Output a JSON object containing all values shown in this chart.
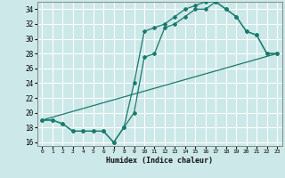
{
  "xlabel": "Humidex (Indice chaleur)",
  "bg_color": "#cce8e8",
  "grid_color": "#ffffff",
  "line_color": "#1a7a6e",
  "xlim": [
    -0.5,
    23.5
  ],
  "ylim": [
    15.5,
    35.0
  ],
  "xticks": [
    0,
    1,
    2,
    3,
    4,
    5,
    6,
    7,
    8,
    9,
    10,
    11,
    12,
    13,
    14,
    15,
    16,
    17,
    18,
    19,
    20,
    21,
    22,
    23
  ],
  "yticks": [
    16,
    18,
    20,
    22,
    24,
    26,
    28,
    30,
    32,
    34
  ],
  "line1_x": [
    0,
    1,
    2,
    3,
    4,
    5,
    6,
    7,
    8,
    9,
    10,
    11,
    12,
    13,
    14,
    15,
    16,
    17,
    18,
    19,
    20,
    21,
    22,
    23
  ],
  "line1_y": [
    19,
    19,
    18.5,
    17.5,
    17.5,
    17.5,
    17.5,
    16,
    18,
    24,
    31,
    31.5,
    32,
    33,
    34,
    34.5,
    35,
    35,
    34,
    33,
    31,
    30.5,
    28,
    28
  ],
  "line2_x": [
    0,
    1,
    2,
    3,
    4,
    5,
    6,
    7,
    8,
    9,
    10,
    11,
    12,
    13,
    14,
    15,
    16,
    17,
    18,
    19,
    20,
    21,
    22,
    23
  ],
  "line2_y": [
    19,
    19,
    18.5,
    17.5,
    17.5,
    17.5,
    17.5,
    16,
    18,
    20,
    27.5,
    28,
    31.5,
    32,
    33,
    34,
    34,
    35,
    34,
    33,
    31,
    30.5,
    28,
    28
  ],
  "line3_x": [
    0,
    23
  ],
  "line3_y": [
    19,
    28
  ]
}
